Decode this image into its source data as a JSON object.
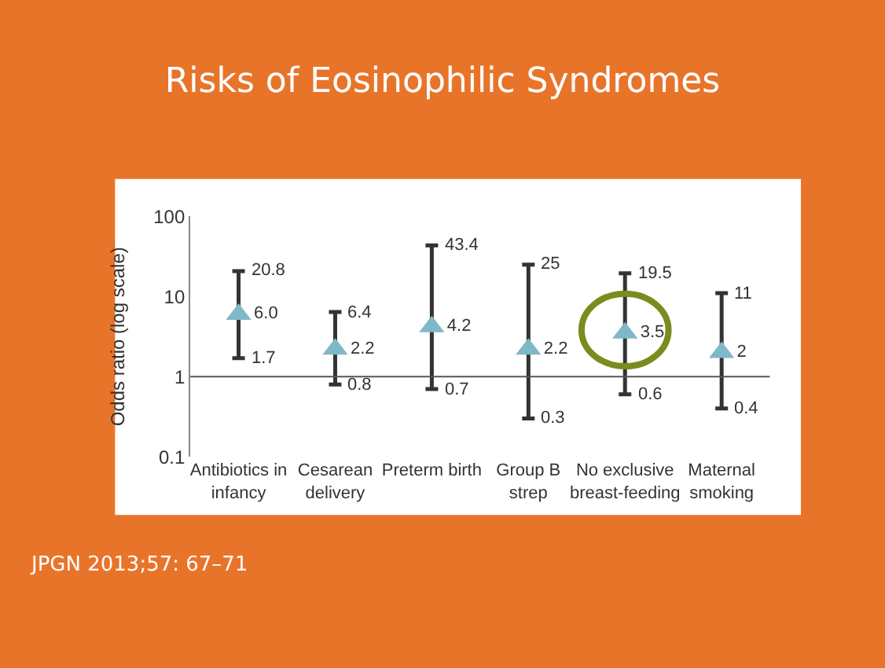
{
  "chart_data": {
    "type": "scatter",
    "title": "Risks of Eosinophilic Syndromes",
    "ylabel": "Odds ratio (log scale)",
    "categories": [
      "Antibiotics in\ninfancy",
      "Cesarean\ndelivery",
      "Preterm birth",
      "Group B\nstrep",
      "No exclusive\nbreast-feeding",
      "Maternal\nsmoking"
    ],
    "values": [
      6.0,
      2.2,
      4.2,
      2.2,
      3.5,
      2
    ],
    "value_labels": [
      "6.0",
      "2.2",
      "4.2",
      "2.2",
      "3.5",
      "2"
    ],
    "errors": [
      [
        1.7,
        20.8
      ],
      [
        0.8,
        6.4
      ],
      [
        0.7,
        43.4
      ],
      [
        0.3,
        25
      ],
      [
        0.6,
        19.5
      ],
      [
        0.4,
        11
      ]
    ],
    "color": "#7fb8c8",
    "marker": "triangle",
    "log": "y",
    "ylim": [
      0.1,
      100
    ],
    "yticks": [
      0.1,
      1,
      10,
      100
    ],
    "ref_lines": [
      {
        "axis": "y",
        "value": 1,
        "color": "#555555"
      }
    ],
    "annotations": [
      {
        "text": "20.8",
        "x": "Antibiotics in\ninfancy",
        "y": 20.8
      },
      {
        "text": "1.7",
        "x": "Antibiotics in\ninfancy",
        "y": 1.7
      },
      {
        "text": "6.4",
        "x": "Cesarean\ndelivery",
        "y": 6.4
      },
      {
        "text": "0.8",
        "x": "Cesarean\ndelivery",
        "y": 0.8
      },
      {
        "text": "43.4",
        "x": "Preterm birth",
        "y": 43.4
      },
      {
        "text": "0.7",
        "x": "Preterm birth",
        "y": 0.7
      },
      {
        "text": "25",
        "x": "Group B\nstrep",
        "y": 25
      },
      {
        "text": "0.3",
        "x": "Group B\nstrep",
        "y": 0.3
      },
      {
        "text": "19.5",
        "x": "No exclusive\nbreast-feeding",
        "y": 19.5
      },
      {
        "text": "0.6",
        "x": "No exclusive\nbreast-feeding",
        "y": 0.6
      },
      {
        "text": "11",
        "x": "Maternal\nsmoking",
        "y": 11
      },
      {
        "text": "0.4",
        "x": "Maternal\nsmoking",
        "y": 0.4
      },
      "JPGN 2013;57: 67–71"
    ]
  }
}
